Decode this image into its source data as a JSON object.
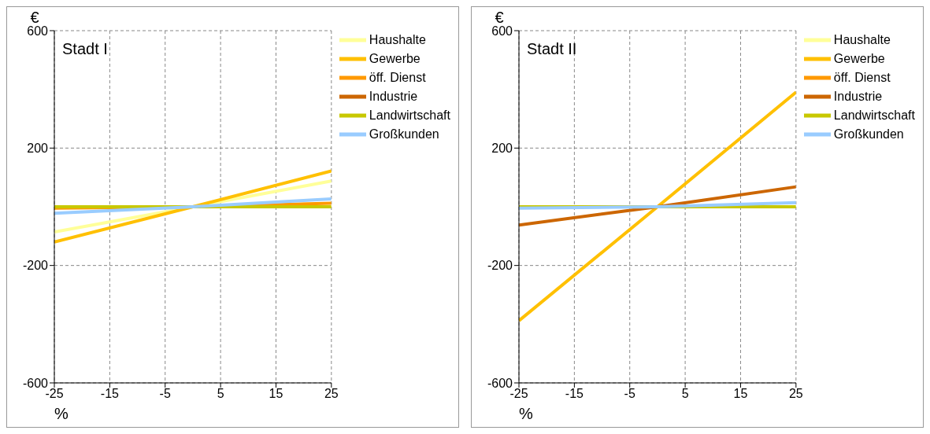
{
  "chart_data": [
    {
      "type": "line",
      "title": "Stadt I",
      "xlabel": "%",
      "ylabel": "€",
      "x": [
        -25,
        0,
        25
      ],
      "xlim": [
        -25,
        25
      ],
      "xticks": [
        -25,
        -15,
        -5,
        5,
        15,
        25
      ],
      "ylim": [
        -600,
        600
      ],
      "yticks": [
        -600,
        -200,
        200,
        600
      ],
      "grid": true,
      "legend": "top right",
      "marker": "none",
      "series": [
        {
          "name": "Haushalte",
          "color": "#ffff99",
          "values": [
            -86,
            0,
            88
          ]
        },
        {
          "name": "Gewerbe",
          "color": "#ffc000",
          "values": [
            -120,
            0,
            122
          ]
        },
        {
          "name": "öff. Dienst",
          "color": "#ff9900",
          "values": [
            -5,
            0,
            12
          ]
        },
        {
          "name": "Industrie",
          "color": "#cc6600",
          "values": [
            null,
            null,
            null
          ]
        },
        {
          "name": "Landwirtschaft",
          "color": "#c8c800",
          "values": [
            0,
            0,
            0
          ]
        },
        {
          "name": "Großkunden",
          "color": "#99ccff",
          "values": [
            -22,
            0,
            27
          ]
        }
      ]
    },
    {
      "type": "line",
      "title": "Stadt II",
      "xlabel": "%",
      "ylabel": "€",
      "x": [
        -25,
        0,
        25
      ],
      "xlim": [
        -25,
        25
      ],
      "xticks": [
        -25,
        -15,
        -5,
        5,
        15,
        25
      ],
      "ylim": [
        -600,
        600
      ],
      "yticks": [
        -600,
        -200,
        200,
        600
      ],
      "grid": true,
      "legend": "top right",
      "marker": "none",
      "series": [
        {
          "name": "Haushalte",
          "color": "#ffff99",
          "values": [
            null,
            null,
            null
          ]
        },
        {
          "name": "Gewerbe",
          "color": "#ffc000",
          "values": [
            -388,
            0,
            390
          ]
        },
        {
          "name": "öff. Dienst",
          "color": "#ff9900",
          "values": [
            null,
            null,
            null
          ]
        },
        {
          "name": "Industrie",
          "color": "#cc6600",
          "values": [
            -62,
            0,
            68
          ]
        },
        {
          "name": "Landwirtschaft",
          "color": "#c8c800",
          "values": [
            0,
            0,
            0
          ]
        },
        {
          "name": "Großkunden",
          "color": "#99ccff",
          "values": [
            -5,
            0,
            14
          ]
        }
      ]
    }
  ]
}
